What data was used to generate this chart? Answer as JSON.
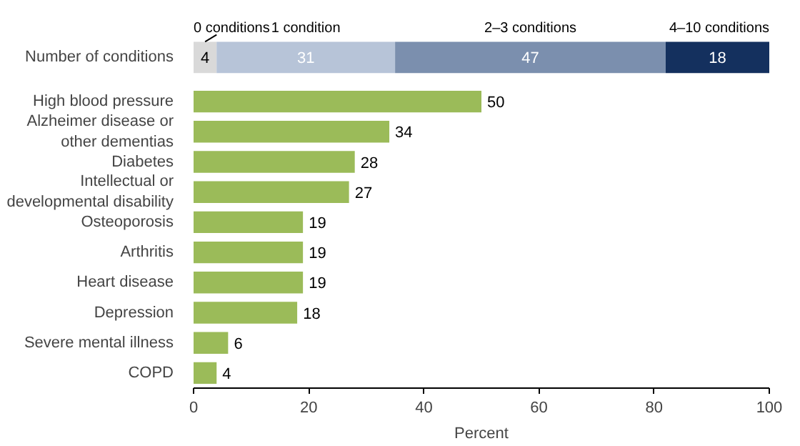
{
  "chart_data": [
    {
      "type": "bar",
      "orientation": "horizontal",
      "stacked": true,
      "categories": [
        "Number of conditions"
      ],
      "series": [
        {
          "name": "0 conditions",
          "color": "#d9d9d9",
          "values": [
            4
          ]
        },
        {
          "name": "1 condition",
          "color": "#b7c4d8",
          "values": [
            31
          ]
        },
        {
          "name": "2–3 conditions",
          "color": "#7b8fae",
          "values": [
            47
          ]
        },
        {
          "name": "4–10 conditions",
          "color": "#14305e",
          "values": [
            18
          ]
        }
      ],
      "xlim": [
        0,
        100
      ],
      "data_labels": true,
      "tick_labels": "y",
      "legend": false,
      "grid": false
    },
    {
      "type": "bar",
      "orientation": "horizontal",
      "categories": [
        "High blood pressure",
        "Alzheimer disease or other dementias",
        "Diabetes",
        "Intellectual or developmental disability",
        "Osteoporosis",
        "Arthritis",
        "Heart disease",
        "Depression",
        "Severe mental illness",
        "COPD"
      ],
      "values": [
        50,
        34,
        28,
        27,
        19,
        19,
        19,
        18,
        6,
        4
      ],
      "color": "#9bbb59",
      "xlim": [
        0,
        100
      ],
      "xticks": [
        0,
        20,
        40,
        60,
        80,
        100
      ],
      "xlabel": "Percent",
      "data_labels": true,
      "legend": false,
      "grid": false
    }
  ]
}
